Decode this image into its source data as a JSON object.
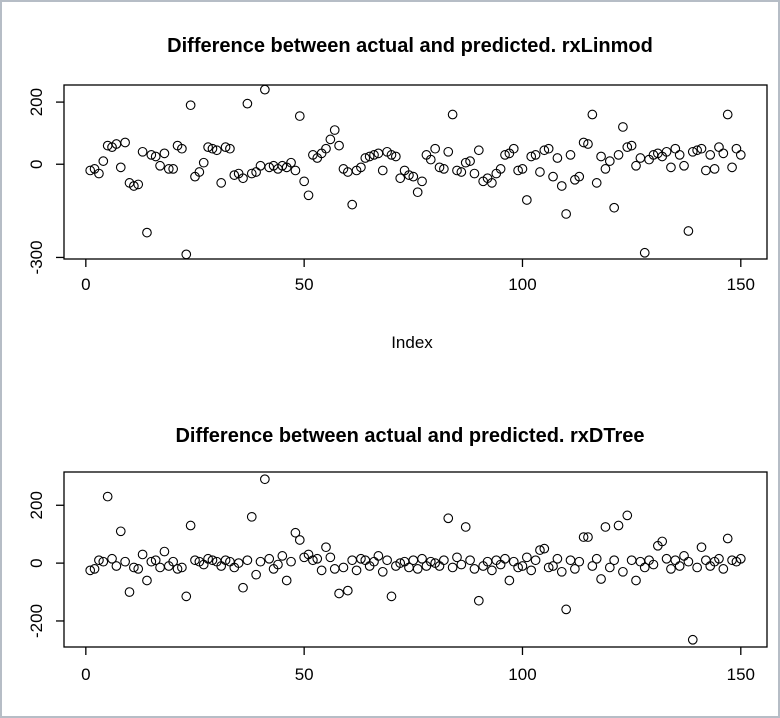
{
  "figure": {
    "background": "#ffffff",
    "border_color": "#b6bdc6",
    "point_color": "#000000"
  },
  "chart_data": [
    {
      "type": "scatter",
      "title": "Difference between actual and predicted. rxLinmod",
      "xlabel": "Index",
      "ylabel": "",
      "marker": "open-circle",
      "grid": false,
      "legend": "none",
      "xlim": [
        -5,
        156
      ],
      "ylim": [
        -305,
        255
      ],
      "xticks": [
        0,
        50,
        100,
        150
      ],
      "yticks": [
        200,
        0,
        -300
      ],
      "x": [
        1,
        2,
        3,
        4,
        5,
        6,
        7,
        8,
        9,
        10,
        11,
        12,
        13,
        14,
        15,
        16,
        17,
        18,
        19,
        20,
        21,
        22,
        23,
        24,
        25,
        26,
        27,
        28,
        29,
        30,
        31,
        32,
        33,
        34,
        35,
        36,
        37,
        38,
        39,
        40,
        41,
        42,
        43,
        44,
        45,
        46,
        47,
        48,
        49,
        50,
        51,
        52,
        53,
        54,
        55,
        56,
        57,
        58,
        59,
        60,
        61,
        62,
        63,
        64,
        65,
        66,
        67,
        68,
        69,
        70,
        71,
        72,
        73,
        74,
        75,
        76,
        77,
        78,
        79,
        80,
        81,
        82,
        83,
        84,
        85,
        86,
        87,
        88,
        89,
        90,
        91,
        92,
        93,
        94,
        95,
        96,
        97,
        98,
        99,
        100,
        101,
        102,
        103,
        104,
        105,
        106,
        107,
        108,
        109,
        110,
        111,
        112,
        113,
        114,
        115,
        116,
        117,
        118,
        119,
        120,
        121,
        122,
        123,
        124,
        125,
        126,
        127,
        128,
        129,
        130,
        131,
        132,
        133,
        134,
        135,
        136,
        137,
        138,
        139,
        140,
        141,
        142,
        143,
        144,
        145,
        146,
        147,
        148,
        149,
        150
      ],
      "y": [
        -20,
        -15,
        -30,
        10,
        60,
        55,
        65,
        -10,
        70,
        -60,
        -70,
        -65,
        40,
        -220,
        30,
        25,
        -5,
        35,
        -15,
        -15,
        60,
        50,
        -290,
        190,
        -40,
        -25,
        5,
        55,
        50,
        45,
        -60,
        55,
        50,
        -35,
        -30,
        -45,
        195,
        -30,
        -25,
        -5,
        240,
        -10,
        -5,
        -15,
        -5,
        -10,
        5,
        -20,
        155,
        -55,
        -100,
        30,
        20,
        35,
        50,
        80,
        110,
        60,
        -15,
        -25,
        -130,
        -20,
        -10,
        20,
        25,
        30,
        35,
        -20,
        40,
        30,
        25,
        -45,
        -20,
        -35,
        -40,
        -90,
        -55,
        30,
        15,
        50,
        -10,
        -15,
        40,
        160,
        -20,
        -25,
        5,
        10,
        -30,
        45,
        -55,
        -45,
        -60,
        -30,
        -15,
        30,
        35,
        50,
        -20,
        -15,
        -115,
        25,
        30,
        -25,
        45,
        50,
        -40,
        20,
        -70,
        -160,
        30,
        -50,
        -40,
        70,
        65,
        160,
        -60,
        25,
        -15,
        10,
        -140,
        30,
        120,
        55,
        60,
        -5,
        20,
        -285,
        15,
        30,
        35,
        25,
        40,
        -10,
        50,
        30,
        -5,
        -215,
        40,
        45,
        50,
        -20,
        30,
        -15,
        55,
        35,
        160,
        -10,
        50,
        30
      ]
    },
    {
      "type": "scatter",
      "title": "Difference between actual and predicted. rxDTree",
      "xlabel": "",
      "ylabel": "",
      "marker": "open-circle",
      "grid": false,
      "legend": "none",
      "xlim": [
        -5,
        156
      ],
      "ylim": [
        -290,
        315
      ],
      "xticks": [
        0,
        50,
        100,
        150
      ],
      "yticks": [
        200,
        0,
        -200
      ],
      "x": [
        1,
        2,
        3,
        4,
        5,
        6,
        7,
        8,
        9,
        10,
        11,
        12,
        13,
        14,
        15,
        16,
        17,
        18,
        19,
        20,
        21,
        22,
        23,
        24,
        25,
        26,
        27,
        28,
        29,
        30,
        31,
        32,
        33,
        34,
        35,
        36,
        37,
        38,
        39,
        40,
        41,
        42,
        43,
        44,
        45,
        46,
        47,
        48,
        49,
        50,
        51,
        52,
        53,
        54,
        55,
        56,
        57,
        58,
        59,
        60,
        61,
        62,
        63,
        64,
        65,
        66,
        67,
        68,
        69,
        70,
        71,
        72,
        73,
        74,
        75,
        76,
        77,
        78,
        79,
        80,
        81,
        82,
        83,
        84,
        85,
        86,
        87,
        88,
        89,
        90,
        91,
        92,
        93,
        94,
        95,
        96,
        97,
        98,
        99,
        100,
        101,
        102,
        103,
        104,
        105,
        106,
        107,
        108,
        109,
        110,
        111,
        112,
        113,
        114,
        115,
        116,
        117,
        118,
        119,
        120,
        121,
        122,
        123,
        124,
        125,
        126,
        127,
        128,
        129,
        130,
        131,
        132,
        133,
        134,
        135,
        136,
        137,
        138,
        139,
        140,
        141,
        142,
        143,
        144,
        145,
        146,
        147,
        148,
        149,
        150
      ],
      "y": [
        -25,
        -20,
        10,
        5,
        230,
        15,
        -10,
        110,
        5,
        -100,
        -15,
        -20,
        30,
        -60,
        5,
        10,
        -15,
        40,
        -10,
        5,
        -20,
        -15,
        -115,
        130,
        10,
        5,
        -5,
        15,
        10,
        5,
        -10,
        10,
        5,
        -15,
        0,
        -85,
        10,
        160,
        -40,
        5,
        290,
        15,
        -20,
        -5,
        25,
        -60,
        5,
        105,
        80,
        20,
        30,
        10,
        15,
        -25,
        55,
        20,
        -20,
        -105,
        -15,
        -95,
        10,
        -25,
        15,
        10,
        -10,
        5,
        25,
        -30,
        10,
        -115,
        -10,
        0,
        5,
        -15,
        10,
        -20,
        15,
        -10,
        5,
        0,
        -10,
        10,
        155,
        -15,
        20,
        -5,
        125,
        10,
        -20,
        -130,
        -10,
        5,
        -25,
        10,
        -5,
        15,
        -60,
        5,
        -15,
        -10,
        20,
        -25,
        10,
        45,
        50,
        -15,
        -10,
        15,
        -30,
        -160,
        10,
        -20,
        5,
        90,
        90,
        -10,
        15,
        -55,
        125,
        -15,
        10,
        130,
        -30,
        165,
        10,
        -60,
        5,
        -15,
        10,
        -5,
        60,
        75,
        15,
        -20,
        10,
        -10,
        25,
        5,
        -265,
        -15,
        55,
        10,
        -10,
        5,
        15,
        -20,
        85,
        10,
        5,
        15
      ]
    }
  ]
}
